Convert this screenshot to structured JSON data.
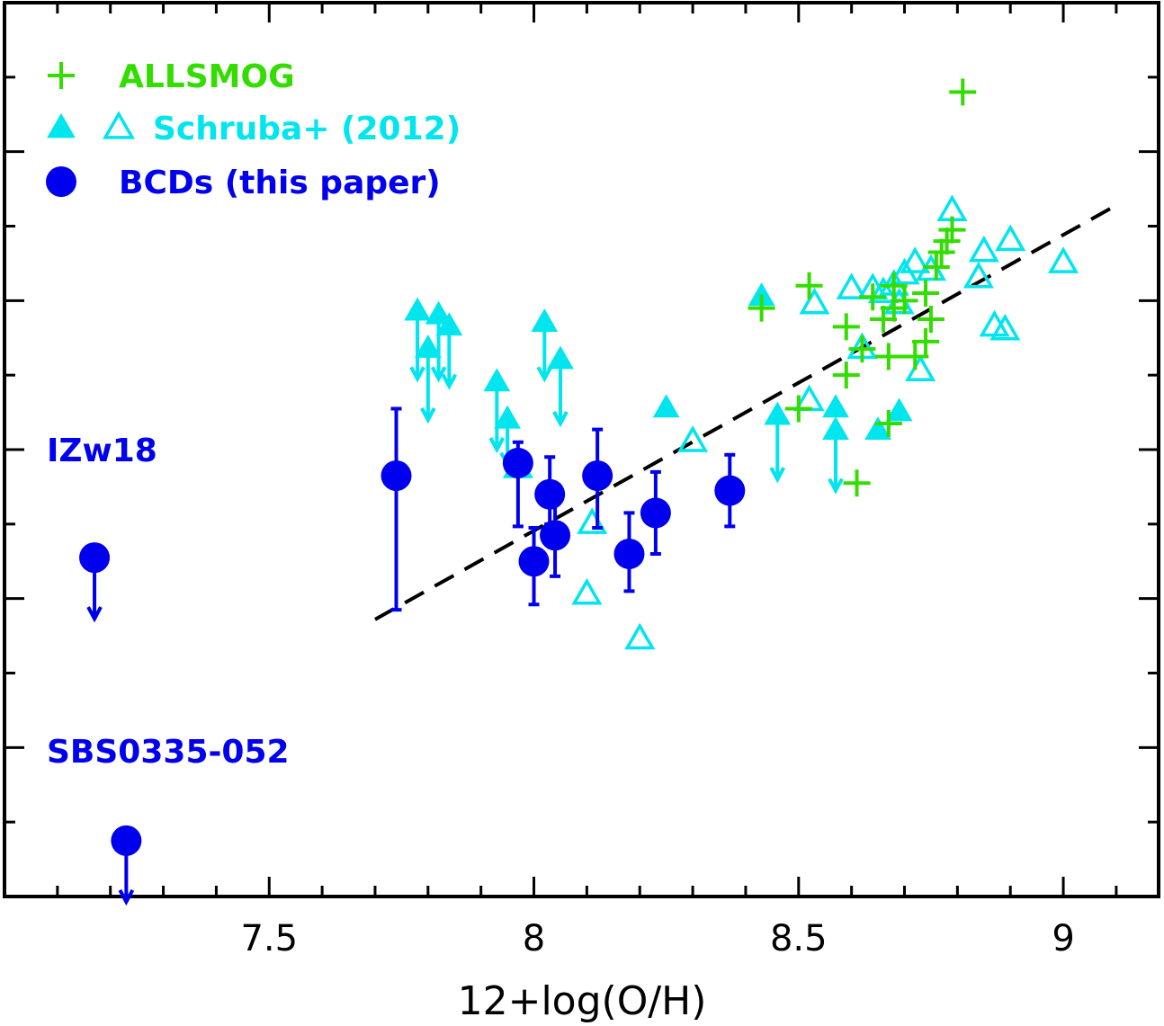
{
  "chart_data": {
    "type": "scatter",
    "title": "",
    "xlabel": "12+log(O/H)",
    "ylabel": "",
    "xlim": [
      7.0,
      9.18
    ],
    "ylim": [
      0.0,
      12.0
    ],
    "x_ticks": [
      7.5,
      8,
      8.5,
      9
    ],
    "x_tick_labels": [
      "7.5",
      "8",
      "8.5",
      "9"
    ],
    "y_tick_labels_visible": false,
    "colors": {
      "allsmog": "#33dd00",
      "schruba": "#00e5ee",
      "bcd": "#0000ee",
      "fit": "#000000"
    },
    "legend": {
      "position": "top-left",
      "entries": [
        {
          "label": "ALLSMOG",
          "marker": "plus"
        },
        {
          "label": "Schruba+ (2012)",
          "marker": "triangle-filled-and-open"
        },
        {
          "label": "BCDs (this paper)",
          "marker": "circle"
        }
      ]
    },
    "annotations": [
      {
        "text": "IZw18",
        "x": 7.09,
        "y": 5.95
      },
      {
        "text": "SBS0335-052",
        "x": 7.09,
        "y": 1.95
      }
    ],
    "fit_line": {
      "style": "dashed",
      "x": [
        7.7,
        9.1
      ],
      "y": [
        3.72,
        9.28
      ]
    },
    "series": [
      {
        "name": "BCDs (this paper)",
        "marker": "circle",
        "points": [
          {
            "x": 7.74,
            "y": 5.65,
            "err_low": 1.8,
            "err_high": 0.9
          },
          {
            "x": 7.97,
            "y": 5.82,
            "err_low": 0.85,
            "err_high": 0.28
          },
          {
            "x": 8.0,
            "y": 4.5,
            "err_low": 0.58,
            "err_high": 0.45
          },
          {
            "x": 8.03,
            "y": 5.4,
            "err_low": 0.4,
            "err_high": 0.5
          },
          {
            "x": 8.04,
            "y": 4.85,
            "err_low": 0.55,
            "err_high": 0.47
          },
          {
            "x": 8.12,
            "y": 5.65,
            "err_low": 0.7,
            "err_high": 0.62
          },
          {
            "x": 8.18,
            "y": 4.6,
            "err_low": 0.5,
            "err_high": 0.55
          },
          {
            "x": 8.23,
            "y": 5.15,
            "err_low": 0.55,
            "err_high": 0.55
          },
          {
            "x": 8.37,
            "y": 5.45,
            "err_low": 0.48,
            "err_high": 0.48
          }
        ]
      },
      {
        "name": "BCDs (this paper) upper limits",
        "marker": "circle-arrow-down",
        "points": [
          {
            "x": 7.17,
            "y": 4.55
          },
          {
            "x": 7.23,
            "y": 0.75
          }
        ]
      },
      {
        "name": "ALLSMOG",
        "marker": "plus",
        "points": [
          {
            "x": 8.81,
            "y": 10.8
          },
          {
            "x": 8.52,
            "y": 8.2
          },
          {
            "x": 8.43,
            "y": 7.9
          },
          {
            "x": 8.5,
            "y": 6.55
          },
          {
            "x": 8.59,
            "y": 7.65
          },
          {
            "x": 8.59,
            "y": 7.0
          },
          {
            "x": 8.61,
            "y": 5.55
          },
          {
            "x": 8.62,
            "y": 7.35
          },
          {
            "x": 8.64,
            "y": 8.05
          },
          {
            "x": 8.66,
            "y": 7.75
          },
          {
            "x": 8.67,
            "y": 7.25
          },
          {
            "x": 8.67,
            "y": 6.35
          },
          {
            "x": 8.68,
            "y": 8.2
          },
          {
            "x": 8.68,
            "y": 7.9
          },
          {
            "x": 8.7,
            "y": 8.0
          },
          {
            "x": 8.72,
            "y": 7.25
          },
          {
            "x": 8.74,
            "y": 8.1
          },
          {
            "x": 8.74,
            "y": 7.45
          },
          {
            "x": 8.75,
            "y": 7.75
          },
          {
            "x": 8.76,
            "y": 8.45
          },
          {
            "x": 8.77,
            "y": 8.65
          },
          {
            "x": 8.78,
            "y": 8.8
          },
          {
            "x": 8.79,
            "y": 8.95
          }
        ]
      },
      {
        "name": "Schruba+ (2012) filled",
        "marker": "triangle-filled",
        "points": [
          {
            "x": 8.43,
            "y": 8.05
          },
          {
            "x": 8.25,
            "y": 6.55
          },
          {
            "x": 8.65,
            "y": 6.25
          },
          {
            "x": 8.69,
            "y": 6.5
          },
          {
            "x": 8.57,
            "y": 6.55
          }
        ]
      },
      {
        "name": "Schruba+ (2012) open",
        "marker": "triangle-open",
        "points": [
          {
            "x": 8.79,
            "y": 9.2
          },
          {
            "x": 8.9,
            "y": 8.8
          },
          {
            "x": 9.0,
            "y": 8.5
          },
          {
            "x": 8.85,
            "y": 8.65
          },
          {
            "x": 8.84,
            "y": 8.3
          },
          {
            "x": 8.75,
            "y": 8.4
          },
          {
            "x": 8.72,
            "y": 8.5
          },
          {
            "x": 8.7,
            "y": 8.35
          },
          {
            "x": 8.68,
            "y": 8.2
          },
          {
            "x": 8.66,
            "y": 8.1
          },
          {
            "x": 8.64,
            "y": 8.15
          },
          {
            "x": 8.6,
            "y": 8.15
          },
          {
            "x": 8.53,
            "y": 7.95
          },
          {
            "x": 8.69,
            "y": 7.95
          },
          {
            "x": 8.87,
            "y": 7.65
          },
          {
            "x": 8.89,
            "y": 7.6
          },
          {
            "x": 8.62,
            "y": 7.35
          },
          {
            "x": 8.73,
            "y": 7.05
          },
          {
            "x": 8.52,
            "y": 6.65
          },
          {
            "x": 8.3,
            "y": 6.1
          },
          {
            "x": 8.11,
            "y": 5.0
          },
          {
            "x": 8.1,
            "y": 4.05
          },
          {
            "x": 8.2,
            "y": 3.45
          },
          {
            "x": 7.97,
            "y": 5.75
          }
        ]
      },
      {
        "name": "Schruba+ (2012) lower limits",
        "marker": "triangle-filled-arrow-down",
        "points": [
          {
            "x": 7.78,
            "y": 7.85,
            "arrow_to": 6.95
          },
          {
            "x": 7.8,
            "y": 7.35,
            "arrow_to": 6.4
          },
          {
            "x": 7.82,
            "y": 7.8,
            "arrow_to": 6.95
          },
          {
            "x": 7.84,
            "y": 7.65,
            "arrow_to": 6.85
          },
          {
            "x": 7.93,
            "y": 6.9,
            "arrow_to": 6.0
          },
          {
            "x": 7.95,
            "y": 6.4,
            "arrow_to": 5.8
          },
          {
            "x": 8.02,
            "y": 7.7,
            "arrow_to": 6.95
          },
          {
            "x": 8.05,
            "y": 7.2,
            "arrow_to": 6.35
          },
          {
            "x": 8.46,
            "y": 6.45,
            "arrow_to": 5.6
          },
          {
            "x": 8.57,
            "y": 6.25,
            "arrow_to": 5.45
          }
        ]
      }
    ]
  }
}
